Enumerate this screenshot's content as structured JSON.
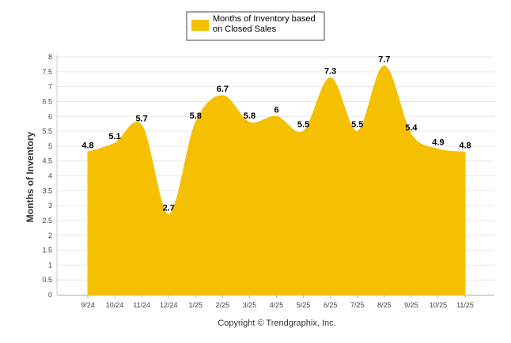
{
  "chart_data": {
    "type": "area",
    "title": "",
    "categories": [
      "9/24",
      "10/24",
      "11/24",
      "12/24",
      "1/25",
      "2/25",
      "3/25",
      "4/25",
      "5/25",
      "6/25",
      "7/25",
      "8/25",
      "9/25",
      "10/25",
      "11/25"
    ],
    "series": [
      {
        "name": "Months of Inventory based on Closed Sales",
        "values": [
          4.8,
          5.1,
          5.7,
          2.7,
          5.8,
          6.7,
          5.8,
          6,
          5.5,
          7.3,
          5.5,
          7.7,
          5.4,
          4.9,
          4.8
        ],
        "labels": [
          "4.8",
          "5.1",
          "5.7",
          "2.7",
          "5.8",
          "6.7",
          "5.8",
          "6",
          "5.5",
          "7.3",
          "5.5",
          "7.7",
          "5.4",
          "4.9",
          "4.8"
        ],
        "color": "#F5C002"
      }
    ],
    "xlabel": "",
    "ylabel": "Months of Inventory",
    "ylim": [
      0,
      8
    ],
    "yticks": [
      "0",
      "0.5",
      "1",
      "1.5",
      "2",
      "2.5",
      "3",
      "3.5",
      "4",
      "4.5",
      "5",
      "5.5",
      "6",
      "6.5",
      "7",
      "7.5",
      "8"
    ],
    "grid": true,
    "legend_position": "top-center"
  },
  "legend": {
    "line1": "Months of Inventory based",
    "line2": "on Closed Sales"
  },
  "footer": {
    "copyright": "Copyright © Trendgraphix, Inc."
  }
}
